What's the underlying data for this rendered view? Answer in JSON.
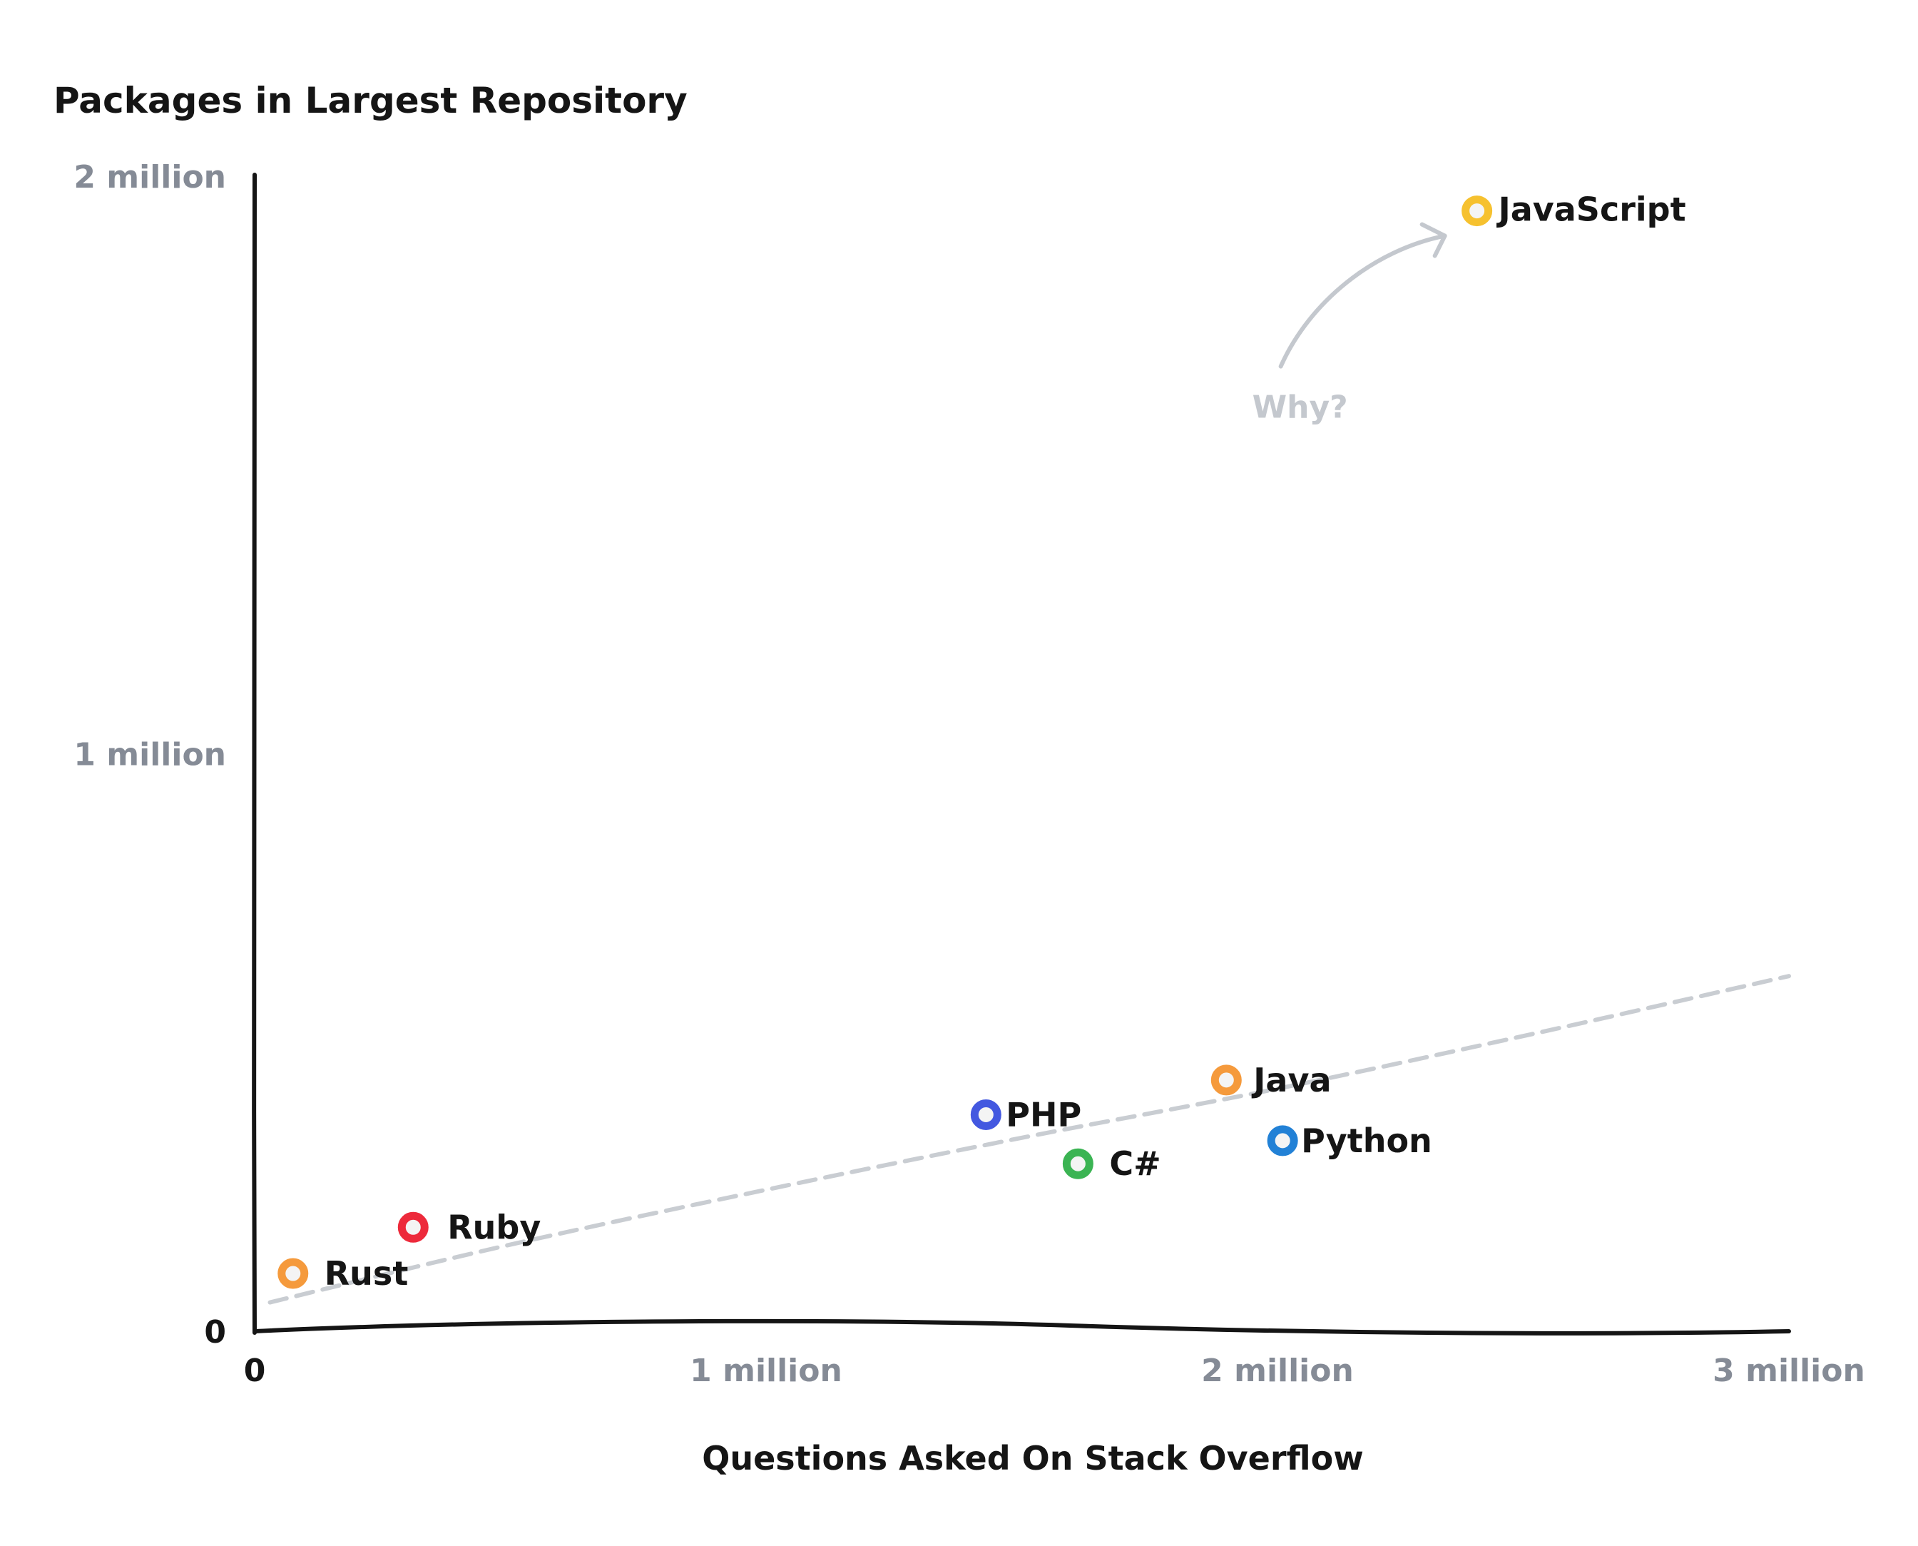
{
  "chart_data": {
    "type": "scatter",
    "title": "",
    "xlabel": "Questions Asked On Stack Overflow",
    "ylabel": "Packages in Largest Repository",
    "xlim": [
      0,
      3000000
    ],
    "ylim": [
      0,
      2000000
    ],
    "x_ticks": [
      {
        "value": 0,
        "label": "0"
      },
      {
        "value": 1000000,
        "label": "1 million"
      },
      {
        "value": 2000000,
        "label": "2 million"
      },
      {
        "value": 3000000,
        "label": "3 million"
      }
    ],
    "y_ticks": [
      {
        "value": 0,
        "label": "0"
      },
      {
        "value": 1000000,
        "label": "1 million"
      },
      {
        "value": 2000000,
        "label": "2 million"
      }
    ],
    "grid": false,
    "legend": "none",
    "points": [
      {
        "label": "JavaScript",
        "x": 2390000,
        "y": 1940000,
        "color": "#f6c12f"
      },
      {
        "label": "Java",
        "x": 1900000,
        "y": 435000,
        "color": "#f59a3c"
      },
      {
        "label": "PHP",
        "x": 1430000,
        "y": 375000,
        "color": "#4358e0"
      },
      {
        "label": "Python",
        "x": 2010000,
        "y": 330000,
        "color": "#2281d6"
      },
      {
        "label": "C#",
        "x": 1610000,
        "y": 290000,
        "color": "#3bb453"
      },
      {
        "label": "Ruby",
        "x": 310000,
        "y": 180000,
        "color": "#ed2a3b"
      },
      {
        "label": "Rust",
        "x": 75000,
        "y": 100000,
        "color": "#f59a3c"
      }
    ],
    "trendline": {
      "style": "dashed",
      "color": "#c9cdd2",
      "x": [
        30000,
        500000,
        1000000,
        1500000,
        2000000,
        2500000,
        3000000
      ],
      "y": [
        50000,
        150000,
        245000,
        335000,
        420000,
        515000,
        615000
      ]
    },
    "annotation": {
      "text": "Why?",
      "color": "#c4c8ce",
      "points_to": "JavaScript"
    }
  }
}
